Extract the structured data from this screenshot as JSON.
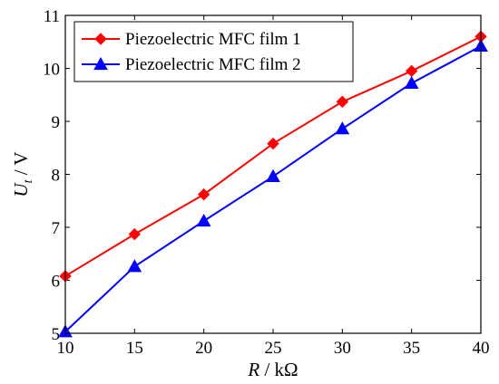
{
  "chart_data": {
    "type": "line",
    "x": [
      10,
      15,
      20,
      25,
      30,
      35,
      40
    ],
    "series": [
      {
        "name": "Piezoelectric MFC film 1",
        "color": "#ff0000",
        "marker": "diamond",
        "values": [
          6.08,
          6.87,
          7.62,
          8.58,
          9.37,
          9.95,
          10.6
        ]
      },
      {
        "name": "Piezoelectric MFC film 2",
        "color": "#0000ff",
        "marker": "triangle-up",
        "values": [
          5.03,
          6.26,
          7.12,
          7.96,
          8.86,
          9.72,
          10.42
        ]
      }
    ],
    "xlim": [
      10,
      40
    ],
    "ylim": [
      5,
      11
    ],
    "xticks": [
      10,
      15,
      20,
      25,
      30,
      35,
      40
    ],
    "yticks": [
      5,
      6,
      7,
      8,
      9,
      10,
      11
    ],
    "xlabel_italic": "R",
    "xlabel_rest": " / kΩ",
    "ylabel_italic": "U",
    "ylabel_sub": "t",
    "ylabel_rest": " / V",
    "grid": false,
    "legend_position": "top-left"
  }
}
